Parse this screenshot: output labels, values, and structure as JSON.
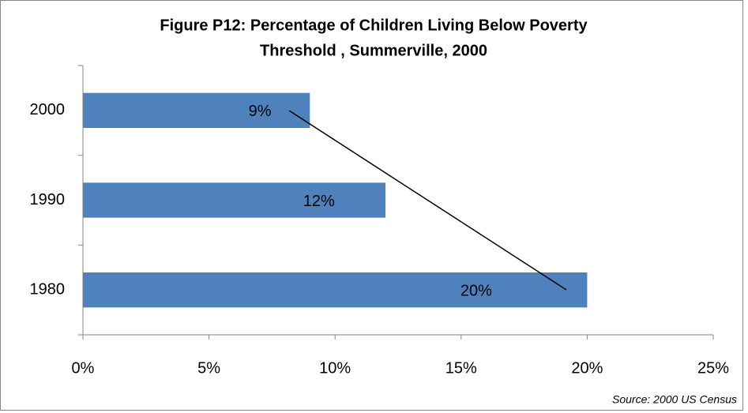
{
  "chart_data": {
    "type": "bar",
    "orientation": "horizontal",
    "title": [
      "Figure P12: Percentage of Children Living Below Poverty",
      "Threshold , Summerville, 2000"
    ],
    "categories": [
      "1980",
      "1990",
      "2000"
    ],
    "values": [
      20,
      12,
      9
    ],
    "value_labels": [
      "20%",
      "12%",
      "9%"
    ],
    "color": "#4f81bd",
    "xlim": [
      0,
      25
    ],
    "xticks": [
      {
        "value": 0,
        "label": "0%"
      },
      {
        "value": 5,
        "label": "5%"
      },
      {
        "value": 10,
        "label": "10%"
      },
      {
        "value": 15,
        "label": "15%"
      },
      {
        "value": 20,
        "label": "20%"
      },
      {
        "value": 25,
        "label": "25%"
      }
    ],
    "grid": false,
    "source": "Source: 2000 US Census"
  }
}
